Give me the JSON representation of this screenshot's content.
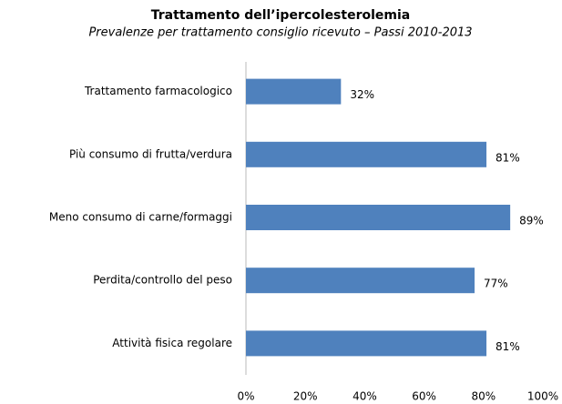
{
  "chart_data": {
    "type": "bar",
    "title": "Trattamento dell’ipercolesterolemia",
    "subtitle": "Prevalenze per trattamento consiglio ricevuto – Passi 2010-2013",
    "categories": [
      "Trattamento farmacologico",
      "Più consumo di frutta/verdura",
      "Meno consumo di carne/formaggi",
      "Perdita/controllo del peso",
      "Attività fisica regolare"
    ],
    "values": [
      32,
      81,
      89,
      77,
      81
    ],
    "value_labels": [
      "32%",
      "81%",
      "89%",
      "77%",
      "81%"
    ],
    "color": "#4f81bd",
    "xlim": [
      0,
      100
    ],
    "xticks": [
      {
        "value": 0,
        "label": "0%"
      },
      {
        "value": 20,
        "label": "20%"
      },
      {
        "value": 40,
        "label": "40%"
      },
      {
        "value": 60,
        "label": "60%"
      },
      {
        "value": 80,
        "label": "80%"
      },
      {
        "value": 100,
        "label": "100%"
      }
    ]
  }
}
